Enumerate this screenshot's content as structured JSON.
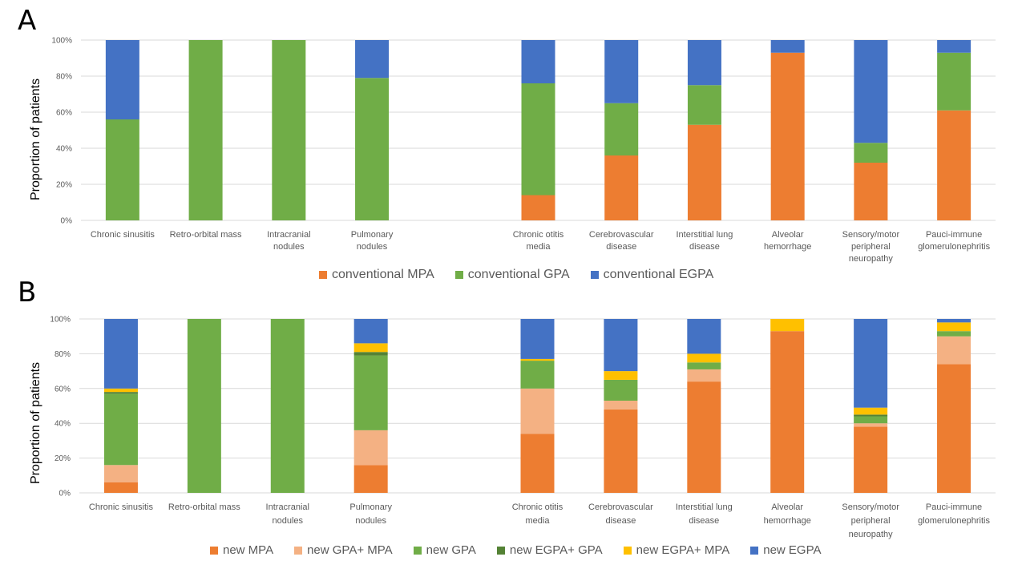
{
  "chart_data": [
    {
      "panel": "A",
      "type": "bar",
      "stacked": true,
      "title": "",
      "xlabel": "",
      "ylabel": "Proportion of patients",
      "ylim": [
        0,
        100
      ],
      "yticks": [
        "0%",
        "20%",
        "40%",
        "60%",
        "80%",
        "100%"
      ],
      "grid": true,
      "legend_position": "bottom",
      "categories": [
        "Chronic sinusitis",
        "Retro-orbital mass",
        "Intracranial nodules",
        "Pulmonary nodules",
        "",
        "Chronic otitis media",
        "Cerebrovascular disease",
        "Interstitial lung disease",
        "Alveolar hemorrhage",
        "Sensory/motor peripheral neuropathy",
        "Pauci-immune glomerulonephritis"
      ],
      "category_lines": [
        [
          "Chronic sinusitis"
        ],
        [
          "Retro-orbital mass"
        ],
        [
          "Intracranial",
          "nodules"
        ],
        [
          "Pulmonary",
          "nodules"
        ],
        [],
        [
          "Chronic otitis",
          "media"
        ],
        [
          "Cerebrovascular",
          "disease"
        ],
        [
          "Interstitial lung",
          "disease"
        ],
        [
          "Alveolar",
          "hemorrhage"
        ],
        [
          "Sensory/motor",
          "peripheral",
          "neuropathy"
        ],
        [
          "Pauci-immune",
          "glomerulonephritis"
        ]
      ],
      "series": [
        {
          "name": "conventional MPA",
          "color": "#ED7D31",
          "values": [
            0,
            0,
            0,
            0,
            null,
            14,
            36,
            53,
            93,
            32,
            61
          ]
        },
        {
          "name": "conventional GPA",
          "color": "#70AD47",
          "values": [
            56,
            100,
            100,
            79,
            null,
            62,
            29,
            22,
            0,
            11,
            32
          ]
        },
        {
          "name": "conventional EGPA",
          "color": "#4472C4",
          "values": [
            44,
            0,
            0,
            21,
            null,
            24,
            35,
            25,
            7,
            57,
            7
          ]
        }
      ]
    },
    {
      "panel": "B",
      "type": "bar",
      "stacked": true,
      "title": "",
      "xlabel": "",
      "ylabel": "Proportion of patients",
      "ylim": [
        0,
        100
      ],
      "yticks": [
        "0%",
        "20%",
        "40%",
        "60%",
        "80%",
        "100%"
      ],
      "grid": true,
      "legend_position": "bottom",
      "categories": [
        "Chronic sinusitis",
        "Retro-orbital mass",
        "Intracranial nodules",
        "Pulmonary nodules",
        "",
        "Chronic otitis media",
        "Cerebrovascular disease",
        "Interstitial lung disease",
        "Alveolar hemorrhage",
        "Sensory/motor peripheral neuropathy",
        "Pauci-immune glomerulonephritis"
      ],
      "category_lines": [
        [
          "Chronic sinusitis"
        ],
        [
          "Retro-orbital mass"
        ],
        [
          "Intracranial",
          "nodules"
        ],
        [
          "Pulmonary",
          "nodules"
        ],
        [],
        [
          "Chronic otitis",
          "media"
        ],
        [
          "Cerebrovascular",
          "disease"
        ],
        [
          "Interstitial lung",
          "disease"
        ],
        [
          "Alveolar",
          "hemorrhage"
        ],
        [
          "Sensory/motor",
          "peripheral",
          "neuropathy"
        ],
        [
          "Pauci-immune",
          "glomerulonephritis"
        ]
      ],
      "series": [
        {
          "name": "new MPA",
          "color": "#ED7D31",
          "values": [
            6,
            0,
            0,
            16,
            null,
            34,
            48,
            64,
            93,
            38,
            74
          ]
        },
        {
          "name": "new GPA+ MPA",
          "color": "#F4B183",
          "values": [
            10,
            0,
            0,
            20,
            null,
            26,
            5,
            7,
            0,
            2,
            16
          ]
        },
        {
          "name": "new GPA",
          "color": "#70AD47",
          "values": [
            41,
            100,
            100,
            43,
            null,
            16,
            12,
            4,
            0,
            4,
            3
          ]
        },
        {
          "name": "new EGPA+ GPA",
          "color": "#548235",
          "values": [
            1,
            0,
            0,
            2,
            null,
            0,
            0,
            0,
            0,
            1,
            0
          ]
        },
        {
          "name": "new EGPA+ MPA",
          "color": "#FFC000",
          "values": [
            2,
            0,
            0,
            5,
            null,
            1,
            5,
            5,
            7,
            4,
            5
          ]
        },
        {
          "name": "new EGPA",
          "color": "#4472C4",
          "values": [
            40,
            0,
            0,
            14,
            null,
            23,
            30,
            20,
            0,
            51,
            2
          ]
        }
      ]
    }
  ]
}
